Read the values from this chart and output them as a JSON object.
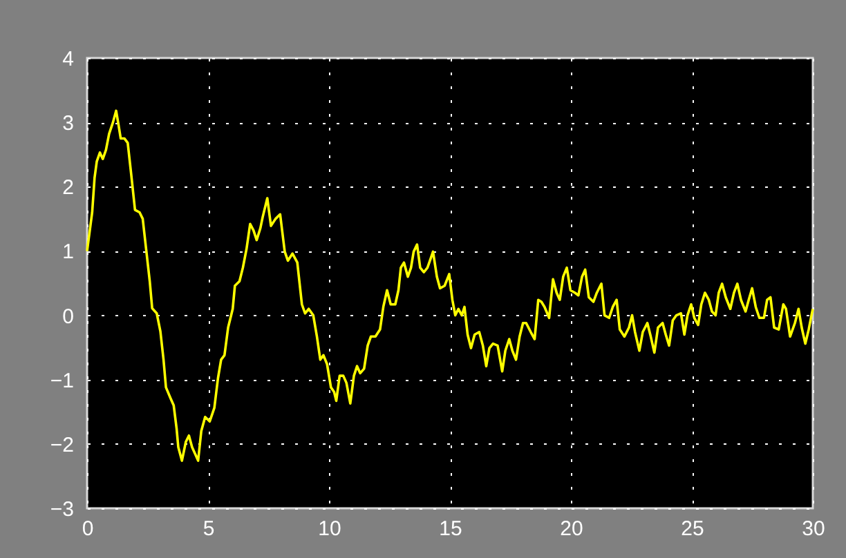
{
  "chart_data": {
    "type": "line",
    "x": [
      0,
      0.21,
      0.31,
      0.4,
      0.53,
      0.65,
      0.78,
      0.91,
      1.07,
      1.2,
      1.3,
      1.39,
      1.54,
      1.68,
      1.83,
      1.98,
      2.17,
      2.3,
      2.44,
      2.59,
      2.69,
      2.88,
      3.03,
      3.16,
      3.26,
      3.45,
      3.58,
      3.7,
      3.77,
      3.92,
      4.08,
      4.21,
      4.34,
      4.46,
      4.59,
      4.72,
      4.88,
      5.07,
      5.26,
      5.41,
      5.54,
      5.68,
      5.83,
      6.02,
      6.11,
      6.3,
      6.44,
      6.59,
      6.74,
      6.88,
      7.01,
      7.16,
      7.26,
      7.45,
      7.6,
      7.79,
      7.98,
      8.17,
      8.3,
      8.49,
      8.69,
      8.88,
      9.01,
      9.16,
      9.35,
      9.5,
      9.64,
      9.77,
      9.92,
      10.08,
      10.21,
      10.3,
      10.44,
      10.59,
      10.72,
      10.88,
      11.03,
      11.16,
      11.29,
      11.45,
      11.6,
      11.73,
      11.92,
      12.11,
      12.25,
      12.4,
      12.55,
      12.74,
      12.87,
      12.97,
      13.1,
      13.26,
      13.39,
      13.5,
      13.64,
      13.77,
      13.92,
      14.07,
      14.21,
      14.3,
      14.46,
      14.59,
      14.78,
      14.97,
      15.1,
      15.22,
      15.35,
      15.49,
      15.6,
      15.73,
      15.87,
      16.02,
      16.21,
      16.36,
      16.5,
      16.63,
      16.78,
      16.97,
      17.16,
      17.29,
      17.45,
      17.58,
      17.73,
      17.88,
      18.02,
      18.15,
      18.34,
      18.5,
      18.65,
      18.78,
      18.91,
      19.1,
      19.26,
      19.41,
      19.54,
      19.68,
      19.83,
      19.98,
      20.17,
      20.31,
      20.46,
      20.59,
      20.74,
      20.93,
      21.07,
      21.26,
      21.39,
      21.58,
      21.73,
      21.89,
      22.02,
      22.21,
      22.4,
      22.53,
      22.65,
      22.83,
      22.97,
      23.16,
      23.3,
      23.45,
      23.6,
      23.79,
      23.92,
      24.06,
      24.21,
      24.36,
      24.55,
      24.69,
      24.82,
      24.97,
      25.1,
      25.26,
      25.39,
      25.54,
      25.7,
      25.83,
      25.98,
      26.11,
      26.25,
      26.4,
      26.59,
      26.74,
      26.88,
      27.03,
      27.22,
      27.35,
      27.49,
      27.64,
      27.79,
      27.98,
      28.11,
      28.25,
      28.4,
      28.59,
      28.78,
      28.89,
      29.06,
      29.26,
      29.41,
      29.54,
      29.69,
      29.83,
      29.96,
      30
    ],
    "series": [
      {
        "color": "#ffff00",
        "values": [
          1.0,
          1.6,
          2.14,
          2.39,
          2.53,
          2.43,
          2.57,
          2.82,
          3.0,
          3.18,
          2.96,
          2.75,
          2.75,
          2.68,
          2.17,
          1.64,
          1.6,
          1.5,
          1.03,
          0.53,
          0.11,
          0.03,
          -0.25,
          -0.69,
          -1.12,
          -1.29,
          -1.4,
          -1.76,
          -2.05,
          -2.26,
          -1.97,
          -1.87,
          -2.05,
          -2.15,
          -2.26,
          -1.8,
          -1.58,
          -1.65,
          -1.44,
          -0.98,
          -0.69,
          -0.62,
          -0.19,
          0.1,
          0.46,
          0.53,
          0.74,
          1.03,
          1.42,
          1.32,
          1.17,
          1.35,
          1.53,
          1.82,
          1.39,
          1.5,
          1.57,
          0.99,
          0.85,
          0.96,
          0.82,
          0.17,
          0.03,
          0.1,
          0.0,
          -0.33,
          -0.69,
          -0.62,
          -0.76,
          -1.12,
          -1.19,
          -1.33,
          -0.94,
          -0.94,
          -1.05,
          -1.37,
          -0.94,
          -0.79,
          -0.9,
          -0.83,
          -0.47,
          -0.33,
          -0.33,
          -0.22,
          0.14,
          0.39,
          0.17,
          0.17,
          0.39,
          0.74,
          0.82,
          0.6,
          0.74,
          0.99,
          1.1,
          0.74,
          0.67,
          0.74,
          0.89,
          0.99,
          0.6,
          0.42,
          0.46,
          0.64,
          0.24,
          0.0,
          0.1,
          0.0,
          0.13,
          -0.3,
          -0.51,
          -0.3,
          -0.26,
          -0.47,
          -0.79,
          -0.51,
          -0.44,
          -0.47,
          -0.87,
          -0.55,
          -0.37,
          -0.55,
          -0.69,
          -0.33,
          -0.12,
          -0.12,
          -0.26,
          -0.37,
          0.24,
          0.21,
          0.13,
          -0.04,
          0.56,
          0.35,
          0.24,
          0.6,
          0.74,
          0.39,
          0.35,
          0.31,
          0.6,
          0.71,
          0.28,
          0.21,
          0.35,
          0.49,
          0.0,
          -0.04,
          0.13,
          0.24,
          -0.22,
          -0.33,
          -0.19,
          0.0,
          -0.26,
          -0.55,
          -0.26,
          -0.12,
          -0.33,
          -0.58,
          -0.19,
          -0.12,
          -0.3,
          -0.47,
          -0.08,
          0.0,
          0.03,
          -0.3,
          0.0,
          0.17,
          -0.04,
          -0.15,
          0.17,
          0.35,
          0.24,
          0.06,
          0.0,
          0.35,
          0.49,
          0.28,
          0.1,
          0.35,
          0.49,
          0.24,
          0.06,
          0.24,
          0.42,
          0.13,
          -0.04,
          -0.04,
          0.24,
          0.28,
          -0.19,
          -0.22,
          0.17,
          0.1,
          -0.33,
          -0.12,
          0.1,
          -0.19,
          -0.44,
          -0.22,
          0.03,
          0.1
        ]
      }
    ],
    "xlim": [
      0,
      30
    ],
    "ylim": [
      -3,
      4
    ],
    "xticks": [
      0,
      5,
      10,
      15,
      20,
      25,
      30
    ],
    "yticks": [
      -3,
      -2,
      -1,
      0,
      1,
      2,
      3,
      4
    ],
    "grid": true,
    "line_style": "solid",
    "marker": "none"
  }
}
